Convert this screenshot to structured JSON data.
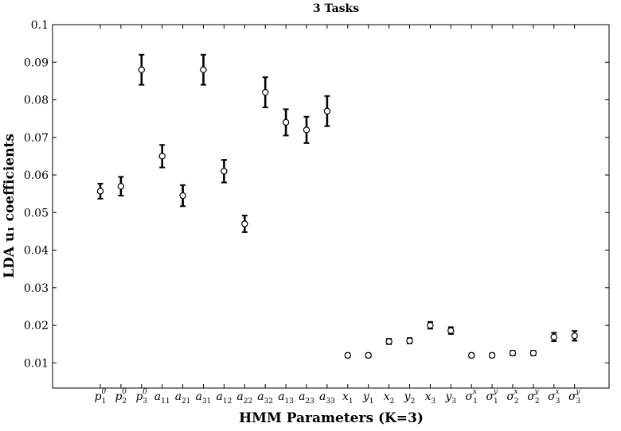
{
  "chart_data": {
    "type": "scatter",
    "title": "3 Tasks",
    "xlabel": "HMM Parameters (K=3)",
    "ylabel": "LDA u₁ coefficients",
    "ylim": [
      0.0033,
      0.1
    ],
    "yticks": [
      0.01,
      0.02,
      0.03,
      0.04,
      0.05,
      0.06,
      0.07,
      0.08,
      0.09,
      0.1
    ],
    "ytick_labels": [
      "0.01",
      "0.02",
      "0.03",
      "0.04",
      "0.05",
      "0.06",
      "0.07",
      "0.08",
      "0.09",
      "0.1"
    ],
    "grid": false,
    "legend": "none",
    "marker": "open-circle",
    "error_bars": true,
    "categories": [
      {
        "base": "p",
        "sub": "1",
        "sup": "0"
      },
      {
        "base": "p",
        "sub": "2",
        "sup": "0"
      },
      {
        "base": "p",
        "sub": "3",
        "sup": "0"
      },
      {
        "base": "a",
        "sub": "11",
        "sup": ""
      },
      {
        "base": "a",
        "sub": "21",
        "sup": ""
      },
      {
        "base": "a",
        "sub": "31",
        "sup": ""
      },
      {
        "base": "a",
        "sub": "12",
        "sup": ""
      },
      {
        "base": "a",
        "sub": "22",
        "sup": ""
      },
      {
        "base": "a",
        "sub": "32",
        "sup": ""
      },
      {
        "base": "a",
        "sub": "13",
        "sup": ""
      },
      {
        "base": "a",
        "sub": "23",
        "sup": ""
      },
      {
        "base": "a",
        "sub": "33",
        "sup": ""
      },
      {
        "base": "x",
        "sub": "1",
        "sup": ""
      },
      {
        "base": "y",
        "sub": "1",
        "sup": ""
      },
      {
        "base": "x",
        "sub": "2",
        "sup": ""
      },
      {
        "base": "y",
        "sub": "2",
        "sup": ""
      },
      {
        "base": "x",
        "sub": "3",
        "sup": ""
      },
      {
        "base": "y",
        "sub": "3",
        "sup": ""
      },
      {
        "base": "σ",
        "sub": "1",
        "sup": "x"
      },
      {
        "base": "σ",
        "sub": "1",
        "sup": "y"
      },
      {
        "base": "σ",
        "sub": "2",
        "sup": "x"
      },
      {
        "base": "σ",
        "sub": "2",
        "sup": "y"
      },
      {
        "base": "σ",
        "sub": "3",
        "sup": "x"
      },
      {
        "base": "σ",
        "sub": "3",
        "sup": "y"
      }
    ],
    "values": [
      0.0557,
      0.057,
      0.088,
      0.065,
      0.0545,
      0.088,
      0.061,
      0.047,
      0.082,
      0.074,
      0.072,
      0.077,
      0.012,
      0.012,
      0.0157,
      0.0159,
      0.02,
      0.0186,
      0.012,
      0.012,
      0.0126,
      0.0126,
      0.0169,
      0.0172
    ],
    "errors": [
      0.002,
      0.0025,
      0.004,
      0.003,
      0.0028,
      0.004,
      0.003,
      0.0022,
      0.004,
      0.0035,
      0.0035,
      0.004,
      0.0005,
      0.0005,
      0.0007,
      0.0007,
      0.0009,
      0.0009,
      0.0005,
      0.0005,
      0.0006,
      0.0006,
      0.0011,
      0.0013
    ]
  }
}
